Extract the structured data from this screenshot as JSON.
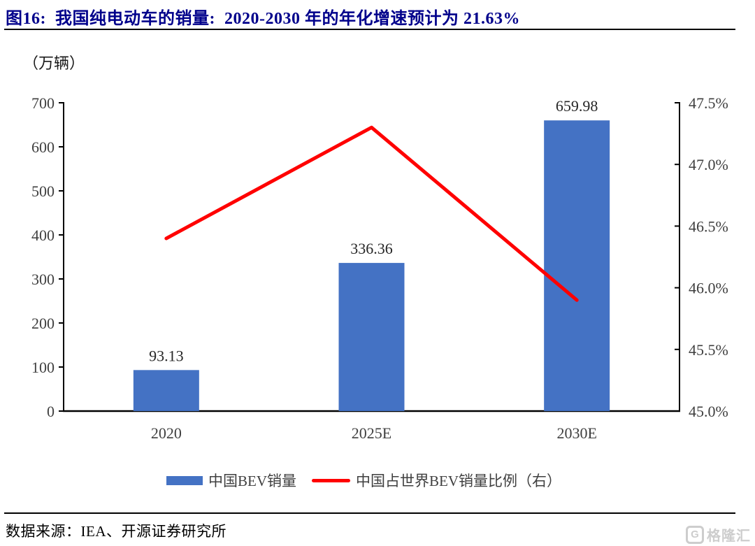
{
  "figure": {
    "title": "图16:  我国纯电动车的销量:  2020-2030 年的年化增速预计为 21.63%",
    "source": "数据来源：IEA、开源证券研究所",
    "watermark": "格隆汇"
  },
  "colors": {
    "bar": "#4472C4",
    "line": "#FF0000",
    "title": "#00008B",
    "axis": "#000000",
    "tick_text": "#3f3f3f",
    "watermark": "#CDCDCD"
  },
  "legend": [
    {
      "label": "中国BEV销量",
      "swatch": "bar",
      "color": "#4472C4"
    },
    {
      "label": "中国占世界BEV销量比例（右）",
      "swatch": "line",
      "color": "#FF0000"
    }
  ],
  "chart_data": {
    "type": "bar",
    "categories": [
      "2020",
      "2025E",
      "2030E"
    ],
    "series": [
      {
        "name": "中国BEV销量",
        "chart": "bar",
        "axis": "left",
        "color": "#4472C4",
        "values": [
          93.13,
          336.36,
          659.98
        ],
        "data_labels": [
          "93.13",
          "336.36",
          "659.98"
        ]
      },
      {
        "name": "中国占世界BEV销量比例（右）",
        "chart": "line",
        "axis": "right",
        "color": "#FF0000",
        "values": [
          46.4,
          47.3,
          45.9
        ]
      }
    ],
    "left_axis": {
      "label": "（万辆）",
      "min": 0,
      "max": 700,
      "ticks": [
        "700",
        "600",
        "500",
        "400",
        "300",
        "200",
        "100",
        "0"
      ]
    },
    "right_axis": {
      "min": 45.0,
      "max": 47.5,
      "ticks": [
        "47.5%",
        "47.0%",
        "46.5%",
        "46.0%",
        "45.5%",
        "45.0%"
      ]
    },
    "grid": false,
    "legend_position": "bottom",
    "title": "图16:  我国纯电动车的销量:  2020-2030 年的年化增速预计为 21.63%"
  }
}
